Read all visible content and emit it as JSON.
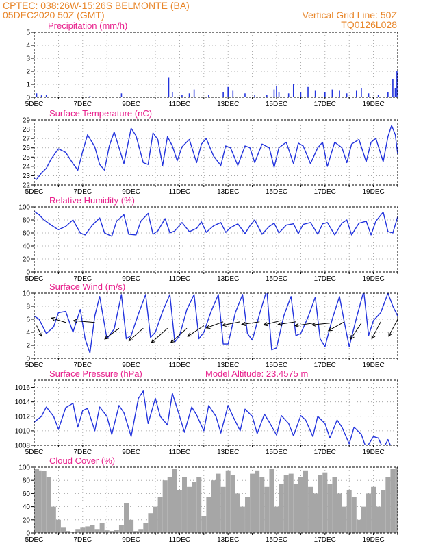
{
  "header": {
    "line1": "CPTEC:   038:26W-15:26S   BELMONTE (BA)",
    "line2": "05DEC2020 50Z (GMT)",
    "grid_note": "Vertical Grid Line: 50Z",
    "code": "TQ0126L028"
  },
  "colors": {
    "header": "#e8862a",
    "title": "#e8208c",
    "line": "#2233dd",
    "bar": "#2233dd",
    "cloud": "#a6a6a6",
    "grid": "#999999"
  },
  "x_axis": {
    "day_labels": [
      "5DEC",
      "7DEC",
      "9DEC",
      "11DEC",
      "13DEC",
      "15DEC",
      "17DEC",
      "19DEC"
    ],
    "start_day": 5,
    "end_day": 20
  },
  "chart_data": [
    {
      "type": "bar",
      "title": "Precipitation (mm/h)",
      "ylim": [
        0,
        5
      ],
      "yticks": [
        0,
        1,
        2,
        3,
        4,
        5
      ],
      "bars": [
        [
          5.1,
          0.3
        ],
        [
          5.3,
          0.15
        ],
        [
          5.5,
          0.2
        ],
        [
          7.3,
          0.1
        ],
        [
          8.6,
          0.3
        ],
        [
          10.55,
          1.5
        ],
        [
          10.7,
          0.4
        ],
        [
          11.1,
          0.2
        ],
        [
          11.4,
          0.3
        ],
        [
          11.6,
          0.6
        ],
        [
          12.2,
          0.2
        ],
        [
          12.8,
          0.4
        ],
        [
          13.0,
          0.8
        ],
        [
          13.2,
          0.5
        ],
        [
          13.7,
          0.3
        ],
        [
          14.1,
          0.2
        ],
        [
          14.6,
          0.2
        ],
        [
          14.9,
          0.6
        ],
        [
          15.0,
          0.9
        ],
        [
          15.1,
          0.4
        ],
        [
          15.5,
          0.3
        ],
        [
          15.7,
          1.0
        ],
        [
          16.0,
          0.4
        ],
        [
          16.3,
          0.8
        ],
        [
          16.6,
          0.5
        ],
        [
          17.0,
          0.4
        ],
        [
          17.3,
          0.6
        ],
        [
          17.6,
          0.5
        ],
        [
          17.9,
          0.3
        ],
        [
          18.3,
          0.5
        ],
        [
          18.5,
          0.7
        ],
        [
          18.8,
          0.3
        ],
        [
          19.2,
          0.2
        ],
        [
          19.6,
          0.4
        ],
        [
          19.8,
          1.4
        ],
        [
          19.9,
          0.7
        ],
        [
          19.97,
          2.0
        ]
      ]
    },
    {
      "type": "line",
      "title": "Surface Temperature (nC)",
      "ylim": [
        22,
        29
      ],
      "yticks": [
        22,
        23,
        24,
        25,
        26,
        27,
        28,
        29
      ],
      "x": [
        5.0,
        5.1,
        5.3,
        5.5,
        5.7,
        6.0,
        6.3,
        6.6,
        6.8,
        7.0,
        7.2,
        7.5,
        7.7,
        7.9,
        8.1,
        8.3,
        8.5,
        8.7,
        9.0,
        9.2,
        9.5,
        9.7,
        9.9,
        10.1,
        10.3,
        10.5,
        10.7,
        10.9,
        11.1,
        11.4,
        11.7,
        11.9,
        12.1,
        12.4,
        12.7,
        12.9,
        13.1,
        13.4,
        13.7,
        13.9,
        14.1,
        14.4,
        14.7,
        14.9,
        15.1,
        15.4,
        15.7,
        15.9,
        16.1,
        16.4,
        16.7,
        16.9,
        17.1,
        17.4,
        17.7,
        17.9,
        18.1,
        18.4,
        18.7,
        18.9,
        19.1,
        19.4,
        19.6,
        19.75,
        19.9,
        20.0
      ],
      "y": [
        22.7,
        22.6,
        23.3,
        23.8,
        24.8,
        25.9,
        25.5,
        24.3,
        23.6,
        25.6,
        27.4,
        26.1,
        24.2,
        23.6,
        26.2,
        27.7,
        26.0,
        24.3,
        28.1,
        27.3,
        24.4,
        24.2,
        27.6,
        26.9,
        24.1,
        27.2,
        26.2,
        24.6,
        26.1,
        26.9,
        24.4,
        26.4,
        27.0,
        25.1,
        24.1,
        26.2,
        26.0,
        24.1,
        26.2,
        26.0,
        24.4,
        26.4,
        26.0,
        23.9,
        26.0,
        26.6,
        24.3,
        26.5,
        26.2,
        24.3,
        26.0,
        26.6,
        24.0,
        26.6,
        26.0,
        24.4,
        26.4,
        26.9,
        24.5,
        26.6,
        27.0,
        24.5,
        27.2,
        28.4,
        27.4,
        25.3
      ]
    },
    {
      "type": "line",
      "title": "Relative Humidity (%)",
      "ylim": [
        0,
        100
      ],
      "yticks": [
        0,
        20,
        40,
        60,
        80,
        100
      ],
      "x": [
        5.0,
        5.2,
        5.4,
        5.7,
        6.0,
        6.3,
        6.6,
        6.9,
        7.1,
        7.4,
        7.7,
        7.9,
        8.2,
        8.4,
        8.7,
        8.9,
        9.2,
        9.4,
        9.7,
        9.9,
        10.1,
        10.4,
        10.6,
        10.8,
        11.1,
        11.4,
        11.7,
        11.9,
        12.1,
        12.4,
        12.7,
        12.9,
        13.1,
        13.4,
        13.7,
        13.9,
        14.1,
        14.4,
        14.7,
        14.9,
        15.1,
        15.4,
        15.7,
        15.9,
        16.1,
        16.4,
        16.7,
        16.9,
        17.1,
        17.4,
        17.7,
        17.9,
        18.1,
        18.4,
        18.7,
        18.9,
        19.1,
        19.4,
        19.6,
        19.8,
        20.0
      ],
      "y": [
        93,
        88,
        80,
        72,
        65,
        70,
        80,
        60,
        57,
        72,
        83,
        60,
        55,
        78,
        88,
        58,
        57,
        78,
        90,
        58,
        63,
        82,
        60,
        63,
        76,
        62,
        67,
        77,
        61,
        71,
        76,
        61,
        68,
        74,
        59,
        71,
        80,
        58,
        70,
        75,
        60,
        72,
        74,
        59,
        73,
        76,
        58,
        74,
        76,
        57,
        75,
        80,
        57,
        75,
        78,
        57,
        78,
        92,
        62,
        60,
        85
      ]
    },
    {
      "type": "line",
      "title": "Surface Wind (m/s)",
      "ylim": [
        0,
        10
      ],
      "yticks": [
        0,
        2,
        4,
        6,
        8,
        10
      ],
      "x": [
        5.0,
        5.2,
        5.5,
        5.8,
        6.0,
        6.3,
        6.6,
        6.9,
        7.1,
        7.3,
        7.5,
        7.7,
        8.0,
        8.3,
        8.6,
        8.8,
        9.0,
        9.3,
        9.6,
        9.8,
        10.0,
        10.3,
        10.6,
        10.8,
        11.0,
        11.3,
        11.6,
        11.8,
        12.0,
        12.3,
        12.6,
        12.8,
        13.0,
        13.3,
        13.6,
        13.8,
        14.0,
        14.3,
        14.6,
        14.8,
        15.0,
        15.3,
        15.6,
        15.8,
        16.0,
        16.3,
        16.6,
        16.8,
        17.0,
        17.3,
        17.6,
        17.8,
        18.0,
        18.3,
        18.6,
        18.8,
        19.0,
        19.3,
        19.6,
        19.8,
        20.0
      ],
      "y": [
        6.5,
        6.0,
        3.8,
        4.8,
        7.0,
        7.2,
        4.0,
        7.5,
        3.0,
        0.8,
        6.5,
        9.5,
        3.0,
        4.5,
        9.8,
        3.0,
        3.5,
        6.8,
        9.8,
        3.2,
        4.0,
        7.2,
        9.8,
        2.5,
        3.5,
        7.5,
        9.8,
        3.0,
        4.0,
        7.2,
        9.8,
        2.2,
        2.2,
        7.0,
        9.8,
        3.8,
        2.8,
        6.8,
        10.5,
        1.3,
        1.6,
        6.5,
        9.5,
        3.5,
        3.8,
        6.3,
        9.4,
        3.0,
        1.8,
        6.0,
        9.5,
        5.5,
        1.8,
        6.2,
        10.3,
        3.5,
        5.8,
        7.0,
        10.0,
        8.0,
        6.5
      ],
      "arrows": [
        [
          5.1,
          5,
          0.3,
          -0.6
        ],
        [
          6.3,
          5.5,
          -0.8,
          0.25
        ],
        [
          7.5,
          5.5,
          -1.2,
          0.1
        ],
        [
          8.5,
          4.6,
          -0.8,
          -0.6
        ],
        [
          9.5,
          4.6,
          -0.8,
          -0.7
        ],
        [
          10.5,
          4.6,
          -0.9,
          -0.8
        ],
        [
          11.3,
          4.6,
          -0.9,
          -0.8
        ],
        [
          12.0,
          5.0,
          -0.9,
          -0.6
        ],
        [
          12.8,
          5.6,
          -0.95,
          -0.35
        ],
        [
          13.5,
          5.6,
          -1.0,
          -0.2
        ],
        [
          14.3,
          5.6,
          -1.0,
          -0.15
        ],
        [
          15.2,
          5.8,
          -1.0,
          -0.25
        ],
        [
          15.8,
          5.6,
          -1.0,
          -0.15
        ],
        [
          16.5,
          5.4,
          -1.0,
          -0.15
        ],
        [
          17.2,
          5.4,
          -1.0,
          -0.1
        ],
        [
          17.8,
          5.6,
          -0.9,
          -0.5
        ],
        [
          18.5,
          5.4,
          -0.6,
          -0.9
        ],
        [
          19.3,
          5.6,
          -0.5,
          -0.95
        ],
        [
          20.0,
          6.0,
          -0.5,
          -0.95
        ]
      ]
    },
    {
      "type": "line",
      "title": "Surface Pressure (hPa)",
      "subtitle": "Model Altitude: 23.4575 m",
      "ylim": [
        1008,
        1017
      ],
      "yticks": [
        1008,
        1010,
        1012,
        1014,
        1016
      ],
      "x": [
        5.0,
        5.3,
        5.5,
        5.8,
        6.0,
        6.3,
        6.6,
        6.8,
        7.0,
        7.2,
        7.5,
        7.7,
        8.0,
        8.2,
        8.5,
        8.7,
        9.0,
        9.3,
        9.5,
        9.7,
        10.0,
        10.2,
        10.5,
        10.7,
        11.0,
        11.2,
        11.5,
        11.7,
        12.0,
        12.2,
        12.5,
        12.7,
        13.0,
        13.2,
        13.5,
        13.7,
        14.0,
        14.2,
        14.5,
        14.7,
        15.0,
        15.2,
        15.5,
        15.7,
        16.0,
        16.2,
        16.5,
        16.7,
        17.0,
        17.2,
        17.5,
        17.7,
        18.0,
        18.2,
        18.5,
        18.7,
        19.0,
        19.2,
        19.4,
        19.6,
        19.8,
        20.0
      ],
      "y": [
        1011.2,
        1012.0,
        1013.3,
        1012.0,
        1010.2,
        1013.2,
        1013.8,
        1010.5,
        1012.8,
        1013.1,
        1010.0,
        1013.3,
        1012.0,
        1009.5,
        1013.5,
        1012.5,
        1009.2,
        1014.5,
        1015.5,
        1011.0,
        1014.5,
        1012.0,
        1010.8,
        1015.2,
        1012.0,
        1009.8,
        1013.3,
        1012.2,
        1010.0,
        1013.5,
        1012.0,
        1009.7,
        1013.5,
        1012.0,
        1010.0,
        1013.0,
        1012.0,
        1009.6,
        1012.3,
        1011.2,
        1009.4,
        1012.1,
        1011.0,
        1009.3,
        1012.1,
        1011.5,
        1009.2,
        1012.0,
        1011.0,
        1009.0,
        1011.5,
        1010.5,
        1008.2,
        1010.5,
        1009.5,
        1007.6,
        1009.2,
        1009.0,
        1007.5,
        1008.8,
        1007.2,
        1007.8
      ]
    },
    {
      "type": "area",
      "title": "Cloud Cover (%)",
      "ylim": [
        0,
        100
      ],
      "yticks": [
        0,
        20,
        40,
        60,
        80,
        100
      ],
      "x": [
        5.0,
        5.1,
        5.2,
        5.4,
        5.6,
        5.8,
        6.0,
        6.2,
        6.4,
        6.6,
        6.8,
        7.0,
        7.2,
        7.4,
        7.6,
        7.8,
        8.0,
        8.2,
        8.4,
        8.6,
        8.8,
        9.0,
        9.2,
        9.4,
        9.6,
        9.8,
        10.0,
        10.2,
        10.4,
        10.6,
        10.8,
        11.0,
        11.2,
        11.4,
        11.6,
        11.8,
        12.0,
        12.2,
        12.4,
        12.6,
        12.8,
        13.0,
        13.2,
        13.4,
        13.6,
        13.8,
        14.0,
        14.2,
        14.4,
        14.6,
        14.8,
        15.0,
        15.2,
        15.4,
        15.6,
        15.8,
        16.0,
        16.2,
        16.4,
        16.6,
        16.8,
        17.0,
        17.2,
        17.4,
        17.6,
        17.8,
        18.0,
        18.2,
        18.4,
        18.6,
        18.8,
        19.0,
        19.2,
        19.4,
        19.6,
        19.8,
        20.0
      ],
      "y": [
        92,
        97,
        95,
        94,
        85,
        40,
        20,
        8,
        3,
        2,
        6,
        8,
        10,
        12,
        6,
        15,
        4,
        3,
        5,
        12,
        45,
        20,
        3,
        6,
        15,
        30,
        40,
        55,
        80,
        85,
        97,
        65,
        85,
        70,
        78,
        85,
        25,
        55,
        80,
        90,
        70,
        95,
        88,
        60,
        40,
        55,
        90,
        95,
        85,
        70,
        97,
        40,
        75,
        88,
        90,
        75,
        85,
        95,
        70,
        60,
        88,
        92,
        75,
        85,
        60,
        40,
        65,
        55,
        20,
        40,
        60,
        70,
        40,
        65,
        85,
        97,
        100
      ]
    }
  ]
}
